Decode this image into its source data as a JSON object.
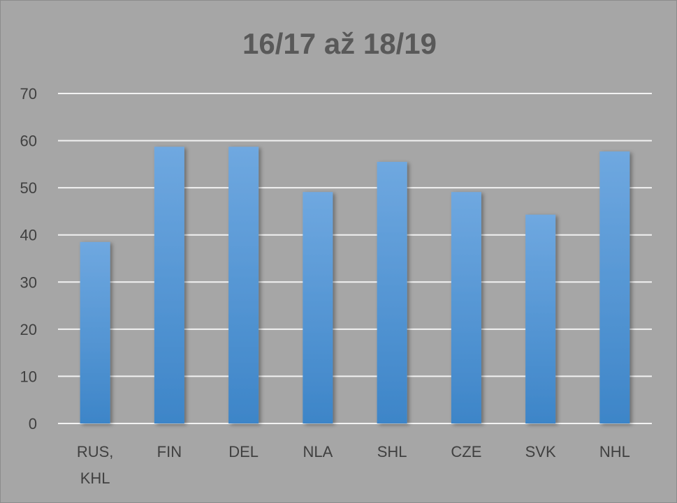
{
  "chart_data": {
    "type": "bar",
    "title": "16/17 až 18/19",
    "categories": [
      [
        "RUS,",
        "KHL"
      ],
      [
        "FIN"
      ],
      [
        "DEL"
      ],
      [
        "NLA"
      ],
      [
        "SHL"
      ],
      [
        "CZE"
      ],
      [
        "SVK"
      ],
      [
        "NHL"
      ]
    ],
    "values": [
      38.5,
      58.7,
      58.7,
      49.1,
      55.5,
      49.1,
      44.3,
      57.7
    ],
    "ylim": [
      0,
      70
    ],
    "yticks": [
      0,
      10,
      20,
      30,
      40,
      50,
      60,
      70
    ],
    "grid": true,
    "legend": "none",
    "xlabel": "",
    "ylabel": ""
  },
  "colors": {
    "background": "#a6a6a6",
    "bar_top": "#6fa8e0",
    "bar_bottom": "#3d85c8",
    "gridline": "#f2f2f2",
    "text": "#404040",
    "title": "#595959"
  }
}
